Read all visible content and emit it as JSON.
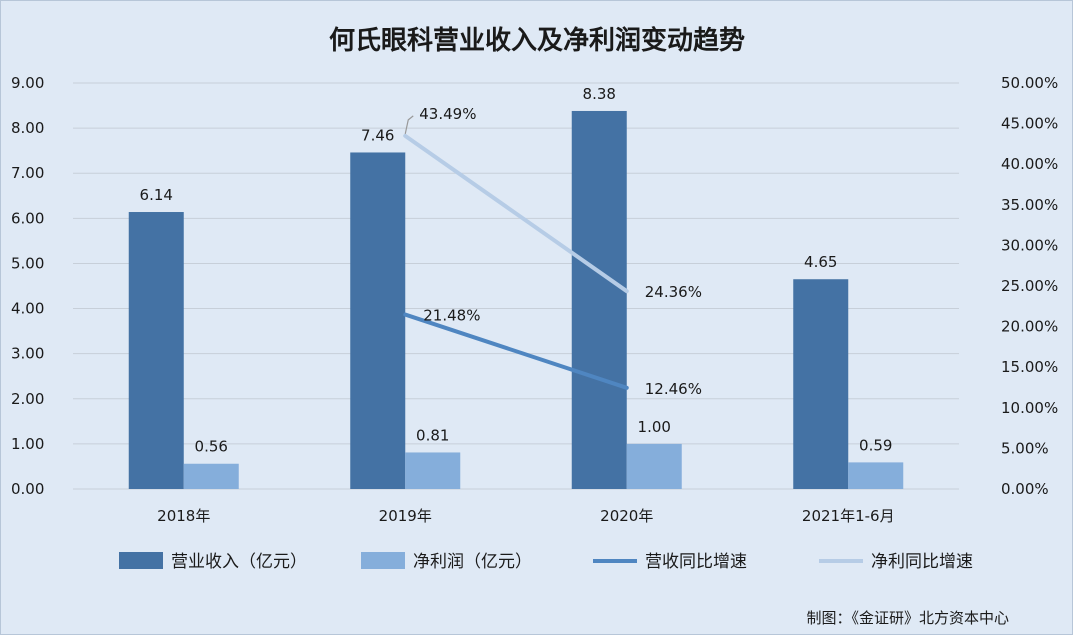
{
  "chart_data": {
    "type": "bar",
    "title": "何氏眼科营业收入及净利润变动趋势",
    "categories": [
      "2018年",
      "2019年",
      "2020年",
      "2021年1-6月"
    ],
    "y_left": {
      "range": [
        0,
        9
      ],
      "ticks": [
        "0.00",
        "1.00",
        "2.00",
        "3.00",
        "4.00",
        "5.00",
        "6.00",
        "7.00",
        "8.00",
        "9.00"
      ]
    },
    "y_right": {
      "range": [
        0,
        50
      ],
      "ticks": [
        "0.00%",
        "5.00%",
        "10.00%",
        "15.00%",
        "20.00%",
        "25.00%",
        "30.00%",
        "35.00%",
        "40.00%",
        "45.00%",
        "50.00%"
      ]
    },
    "series": [
      {
        "name": "营业收入（亿元）",
        "kind": "bar",
        "axis": "left",
        "color": "#4472a4",
        "values": [
          6.14,
          7.46,
          8.38,
          4.65
        ],
        "labels": [
          "6.14",
          "7.46",
          "8.38",
          "4.65"
        ]
      },
      {
        "name": "净利润（亿元）",
        "kind": "bar",
        "axis": "left",
        "color": "#85aedb",
        "values": [
          0.56,
          0.81,
          1.0,
          0.59
        ],
        "labels": [
          "0.56",
          "0.81",
          "1.00",
          "0.59"
        ]
      },
      {
        "name": "营收同比增速",
        "kind": "line",
        "axis": "right",
        "color": "#4f86c1",
        "values": [
          null,
          21.48,
          12.46,
          null
        ],
        "labels": [
          "",
          "21.48%",
          "12.46%",
          ""
        ]
      },
      {
        "name": "净利同比增速",
        "kind": "line",
        "axis": "right",
        "color": "#b6cce6",
        "values": [
          null,
          43.49,
          24.36,
          null
        ],
        "labels": [
          "",
          "43.49%",
          "24.36%",
          ""
        ]
      }
    ],
    "grid": true,
    "legend_position": "bottom"
  },
  "footnote": "制图：《金证研》北方资本中心"
}
